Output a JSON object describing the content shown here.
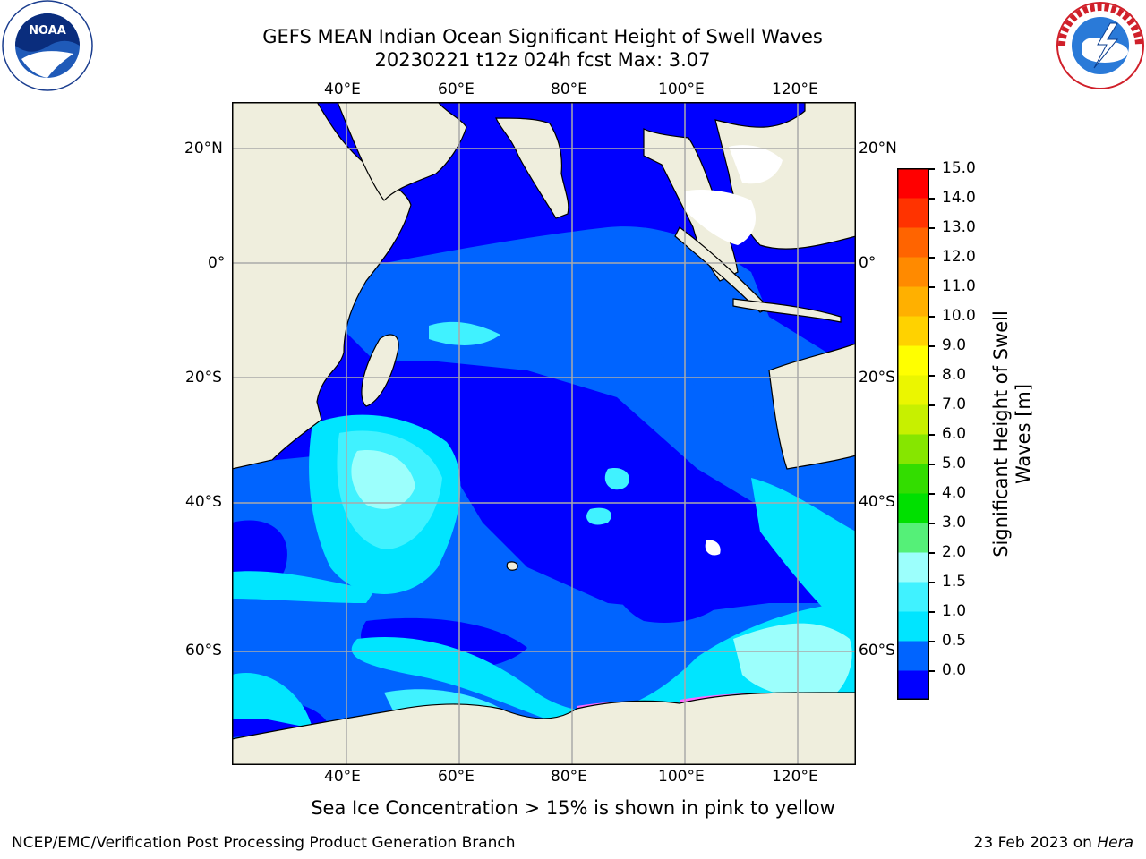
{
  "title": {
    "line1": "GEFS MEAN Indian Ocean Significant Height of Swell Waves",
    "line2": "20230221 t12z 024h fcst   Max: 3.07"
  },
  "logos": {
    "left": {
      "text": "NOAA",
      "ring_text": "NATIONAL OCEANIC AND ATMOSPHERIC ADMINISTRATION · U.S. DEPARTMENT OF COMMERCE"
    },
    "right": {
      "ring_text": "NATIONAL WEATHER SERVICE"
    }
  },
  "map": {
    "lon_ticks": [
      "40°E",
      "60°E",
      "80°E",
      "100°E",
      "120°E"
    ],
    "lat_ticks_left": [
      "20°N",
      "0°",
      "20°S",
      "40°S",
      "60°S"
    ],
    "lat_ticks_right": [
      "20°N",
      "0°",
      "20°S",
      "40°S",
      "60°S"
    ],
    "colors": {
      "land": "#efeedd",
      "grid": "#aaaaaa"
    }
  },
  "colorbar": {
    "label_line1": "Significant Height of Swell",
    "label_line2": "Waves [m]",
    "ticks": [
      "15.0",
      "14.0",
      "13.0",
      "12.0",
      "11.0",
      "10.0",
      "9.0",
      "8.0",
      "7.0",
      "6.0",
      "5.0",
      "4.0",
      "3.0",
      "2.0",
      "1.5",
      "1.0",
      "0.5",
      "0.0"
    ],
    "colors_bottom_to_top": [
      "#0000ff",
      "#0064ff",
      "#00e5ff",
      "#40f2ff",
      "#9cfffc",
      "#55f078",
      "#00e000",
      "#33dd00",
      "#86e600",
      "#c7f000",
      "#ebf600",
      "#ffff00",
      "#ffd200",
      "#ffb000",
      "#ff8a00",
      "#ff6400",
      "#ff3300",
      "#ff0000"
    ]
  },
  "caption": "Sea Ice Concentration > 15% is shown in pink to yellow",
  "footer": {
    "left": "NCEP/EMC/Verification Post Processing Product Generation Branch",
    "right_plain": "23 Feb 2023 on ",
    "right_italic": "Hera"
  }
}
